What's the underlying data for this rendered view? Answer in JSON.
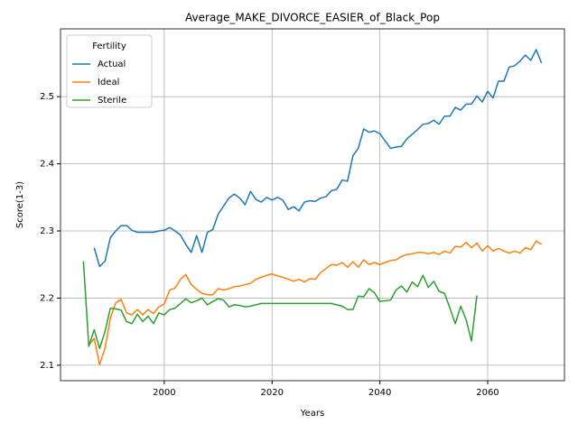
{
  "chart_data": {
    "type": "line",
    "title": "Average_MAKE_DIVORCE_EASIER_of_Black_Pop",
    "x_label": "Years",
    "y_label": "Score(1-3)",
    "legend_title": "Fertility",
    "legend_loc": "upper left",
    "grid": true,
    "xlim": [
      1980.75,
      2074.25
    ],
    "ylim": [
      2.077,
      2.601
    ],
    "xticks": [
      2000,
      2020,
      2040,
      2060
    ],
    "yticks": [
      2.1,
      2.2,
      2.3,
      2.4,
      2.5
    ],
    "x": [
      1985,
      1986,
      1987,
      1988,
      1989,
      1990,
      1991,
      1992,
      1993,
      1994,
      1995,
      1996,
      1997,
      1998,
      1999,
      2000,
      2001,
      2002,
      2003,
      2004,
      2005,
      2006,
      2007,
      2008,
      2009,
      2010,
      2011,
      2012,
      2013,
      2014,
      2015,
      2016,
      2017,
      2018,
      2019,
      2020,
      2021,
      2022,
      2023,
      2024,
      2025,
      2026,
      2027,
      2028,
      2029,
      2030,
      2031,
      2032,
      2033,
      2034,
      2035,
      2036,
      2037,
      2038,
      2039,
      2040,
      2041,
      2042,
      2043,
      2044,
      2045,
      2046,
      2047,
      2048,
      2049,
      2050,
      2051,
      2052,
      2053,
      2054,
      2055,
      2056,
      2057,
      2058,
      2059,
      2060,
      2061,
      2062,
      2063,
      2064,
      2065,
      2066,
      2067,
      2068,
      2069,
      2070
    ],
    "series": [
      {
        "name": "Actual",
        "color": "#1f77b4",
        "values": [
          null,
          null,
          2.275,
          2.247,
          2.255,
          2.29,
          2.3,
          2.308,
          2.308,
          2.301,
          2.298,
          2.298,
          2.298,
          2.298,
          2.3,
          2.301,
          2.305,
          2.3,
          2.294,
          2.28,
          2.268,
          2.293,
          2.268,
          2.298,
          2.302,
          2.325,
          2.337,
          2.349,
          2.355,
          2.349,
          2.339,
          2.359,
          2.347,
          2.343,
          2.35,
          2.346,
          2.35,
          2.346,
          2.332,
          2.336,
          2.33,
          2.343,
          2.345,
          2.344,
          2.349,
          2.351,
          2.36,
          2.362,
          2.376,
          2.374,
          2.412,
          2.423,
          2.452,
          2.447,
          2.449,
          2.445,
          2.434,
          2.423,
          2.425,
          2.426,
          2.437,
          2.444,
          2.451,
          2.459,
          2.46,
          2.465,
          2.459,
          2.471,
          2.471,
          2.484,
          2.48,
          2.489,
          2.489,
          2.501,
          2.492,
          2.508,
          2.498,
          2.523,
          2.523,
          2.544,
          2.546,
          2.553,
          2.562,
          2.554,
          2.57,
          2.55
        ]
      },
      {
        "name": "Ideal",
        "color": "#ff7f0e",
        "values": [
          null,
          2.13,
          2.14,
          2.101,
          2.125,
          2.17,
          2.193,
          2.198,
          2.178,
          2.175,
          2.183,
          2.175,
          2.183,
          2.177,
          2.187,
          2.191,
          2.212,
          2.215,
          2.228,
          2.235,
          2.22,
          2.213,
          2.207,
          2.205,
          2.205,
          2.214,
          2.212,
          2.214,
          2.217,
          2.218,
          2.22,
          2.222,
          2.228,
          2.231,
          2.234,
          2.236,
          2.233,
          2.231,
          2.228,
          2.225,
          2.228,
          2.224,
          2.229,
          2.228,
          2.238,
          2.244,
          2.25,
          2.249,
          2.253,
          2.246,
          2.254,
          2.246,
          2.257,
          2.25,
          2.253,
          2.25,
          2.253,
          2.256,
          2.257,
          2.262,
          2.265,
          2.266,
          2.268,
          2.268,
          2.266,
          2.268,
          2.265,
          2.27,
          2.267,
          2.277,
          2.276,
          2.283,
          2.275,
          2.282,
          2.27,
          2.278,
          2.27,
          2.274,
          2.27,
          2.267,
          2.27,
          2.267,
          2.275,
          2.272,
          2.285,
          2.28
        ]
      },
      {
        "name": "Sterile",
        "color": "#2ca02c",
        "values": [
          2.255,
          2.128,
          2.153,
          2.125,
          2.15,
          2.185,
          2.184,
          2.182,
          2.165,
          2.162,
          2.176,
          2.165,
          2.173,
          2.162,
          2.178,
          2.175,
          2.183,
          2.185,
          2.192,
          2.199,
          2.193,
          2.196,
          2.2,
          2.19,
          2.195,
          2.199,
          2.197,
          2.187,
          2.19,
          2.189,
          2.187,
          2.188,
          2.19,
          2.192,
          2.192,
          2.192,
          2.192,
          2.192,
          2.192,
          2.192,
          2.192,
          2.192,
          2.192,
          2.192,
          2.192,
          2.192,
          2.192,
          2.19,
          2.188,
          2.183,
          2.183,
          2.203,
          2.202,
          2.214,
          2.208,
          2.195,
          2.196,
          2.197,
          2.212,
          2.218,
          2.209,
          2.224,
          2.217,
          2.234,
          2.216,
          2.225,
          2.21,
          2.207,
          2.185,
          2.162,
          2.188,
          2.168,
          2.136,
          2.204,
          null,
          null,
          null,
          null,
          null,
          null,
          null,
          null,
          null,
          null,
          null,
          null
        ]
      }
    ]
  }
}
